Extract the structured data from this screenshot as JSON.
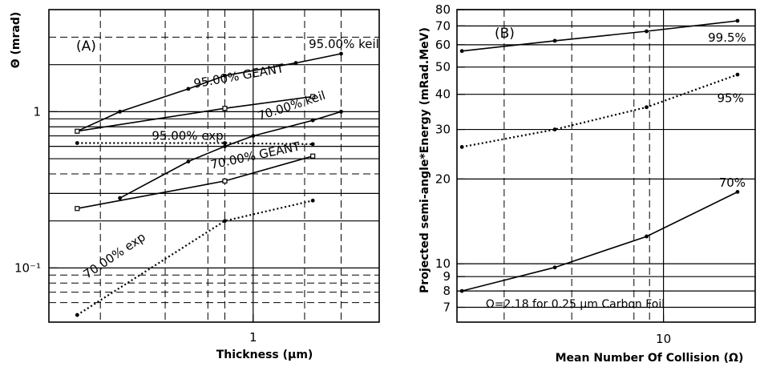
{
  "chart_data": [
    {
      "type": "line",
      "panel_label": "(A)",
      "xlabel": "Thickness (μm)",
      "ylabel": "Θ (mrad)",
      "x_scale": "log",
      "y_scale": "log",
      "xlim": [
        0.2,
        2.7
      ],
      "ylim": [
        0.045,
        4.5
      ],
      "x_ticks": [
        {
          "value": 1,
          "label": "1"
        }
      ],
      "y_ticks": [
        {
          "value": 0.1,
          "label": "10⁻¹"
        },
        {
          "value": 1,
          "label": "1"
        }
      ],
      "grid": true,
      "series": [
        {
          "name": "95.00% keil",
          "line": "solid",
          "marker": "dot",
          "x": [
            0.25,
            0.35,
            0.6,
            0.8,
            1.4,
            2.0
          ],
          "y": [
            0.75,
            1.0,
            1.4,
            1.7,
            2.05,
            2.35
          ]
        },
        {
          "name": "95.00% GEANT",
          "line": "solid",
          "marker": "open-square",
          "x": [
            0.25,
            0.8,
            1.6
          ],
          "y": [
            0.75,
            1.05,
            1.25
          ]
        },
        {
          "name": "70.00% keil",
          "line": "solid",
          "marker": "dot",
          "x": [
            0.35,
            0.6,
            0.8,
            1.0,
            1.6,
            2.0
          ],
          "y": [
            0.28,
            0.48,
            0.6,
            0.7,
            0.88,
            1.0
          ]
        },
        {
          "name": "70.00% GEANT",
          "line": "solid",
          "marker": "open-square",
          "x": [
            0.25,
            0.8,
            1.6
          ],
          "y": [
            0.24,
            0.36,
            0.52
          ]
        },
        {
          "name": "95.00% exp",
          "line": "dotted",
          "marker": "dot",
          "x": [
            0.25,
            0.8,
            1.6
          ],
          "y": [
            0.63,
            0.63,
            0.62
          ]
        },
        {
          "name": "70.00% exp",
          "line": "dotted",
          "marker": "dot",
          "x": [
            0.25,
            0.8,
            1.6
          ],
          "y": [
            0.05,
            0.2,
            0.27
          ]
        }
      ]
    },
    {
      "type": "line",
      "panel_label": "(B)",
      "xlabel": "Mean Number Of Collision (Ω)",
      "ylabel": "Projected semi-angle*Energy (mRad.MeV)",
      "x_scale": "log",
      "y_scale": "log",
      "xlim": [
        2.1,
        20
      ],
      "ylim": [
        6.2,
        80
      ],
      "x_ticks": [
        {
          "value": 10,
          "label": "10"
        }
      ],
      "y_ticks": [
        {
          "value": 7,
          "label": "7"
        },
        {
          "value": 8,
          "label": "8"
        },
        {
          "value": 9,
          "label": "9"
        },
        {
          "value": 10,
          "label": "10"
        },
        {
          "value": 20,
          "label": "20"
        },
        {
          "value": 30,
          "label": "30"
        },
        {
          "value": 40,
          "label": "40"
        },
        {
          "value": 50,
          "label": "50"
        },
        {
          "value": 60,
          "label": "60"
        },
        {
          "value": 70,
          "label": "70"
        },
        {
          "value": 80,
          "label": "80"
        }
      ],
      "grid": true,
      "annotation": "Ω=2.18 for 0.25 μm Carbon Foil",
      "series": [
        {
          "name": "99.5%",
          "line": "solid",
          "marker": "dot",
          "x": [
            2.18,
            4.4,
            8.8,
            17.5
          ],
          "y": [
            57,
            62,
            67,
            73
          ]
        },
        {
          "name": "95%",
          "line": "dotted",
          "marker": "dot",
          "x": [
            2.18,
            4.4,
            8.8,
            17.5
          ],
          "y": [
            26,
            30,
            36,
            47
          ]
        },
        {
          "name": "70%",
          "line": "solid",
          "marker": "dot",
          "x": [
            2.18,
            4.4,
            8.8,
            17.5
          ],
          "y": [
            8,
            9.7,
            12.5,
            18
          ]
        }
      ]
    }
  ]
}
